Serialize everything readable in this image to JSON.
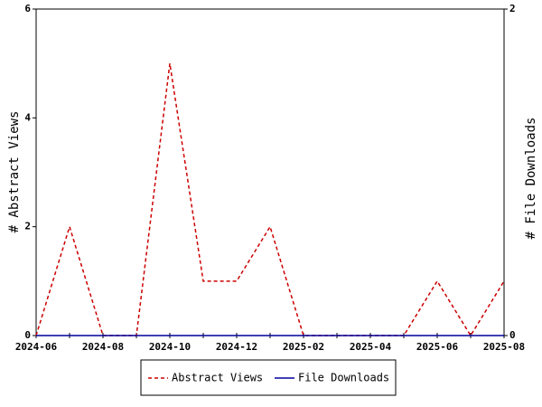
{
  "chart_data": {
    "type": "line",
    "categories": [
      "2024-06",
      null,
      "2024-08",
      null,
      "2024-10",
      null,
      "2024-12",
      null,
      "2025-02",
      null,
      "2025-04",
      null,
      "2025-06",
      null,
      "2025-08"
    ],
    "series": [
      {
        "name": "Abstract Views",
        "color": "#cc0000",
        "values": [
          0,
          2,
          0,
          0,
          5,
          1,
          1,
          2,
          0,
          0,
          0,
          0,
          1,
          0,
          1
        ]
      },
      {
        "name": "File Downloads",
        "color": "#000099",
        "axis": "y2",
        "values": [
          0,
          0,
          0,
          0,
          0,
          0,
          0,
          0,
          0,
          0,
          0,
          0,
          0,
          0,
          0
        ]
      }
    ],
    "ylabel": "# Abstract Views",
    "y2label": "# File Downloads",
    "ylim": [
      0,
      6
    ],
    "yticks": [
      0,
      2,
      4,
      6
    ],
    "y2lim": [
      0,
      2
    ],
    "y2ticks": [
      0,
      2
    ]
  }
}
